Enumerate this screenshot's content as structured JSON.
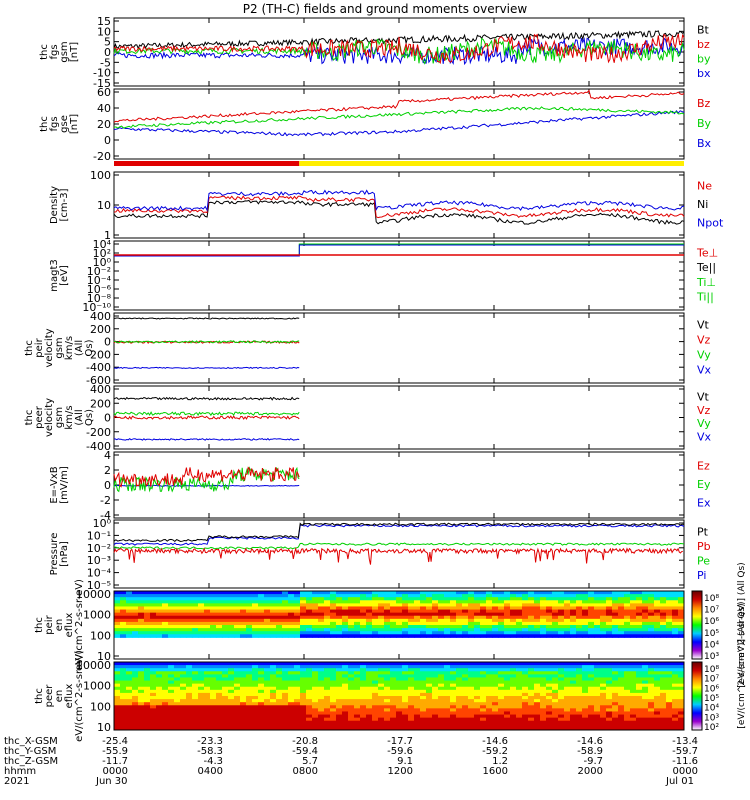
{
  "title": "P2 (TH-C) fields and ground moments overview",
  "colors": {
    "black": "#000000",
    "red": "#e00000",
    "green": "#00d000",
    "blue": "#0000e0",
    "yellow": "#ffee00"
  },
  "time_axis": {
    "tick_hours": [
      0,
      4,
      8,
      12,
      16,
      20,
      24
    ],
    "rows": [
      {
        "label": "thc_X-GSM",
        "values": [
          "-25.4",
          "-23.3",
          "-20.8",
          "-17.7",
          "-14.6",
          "-14.6",
          "-13.4"
        ]
      },
      {
        "label": "thc_Y-GSM",
        "values": [
          "-55.9",
          "-58.3",
          "-59.4",
          "-59.6",
          "-59.2",
          "-58.9",
          "-59.7"
        ]
      },
      {
        "label": "thc_Z-GSM",
        "values": [
          "-11.7",
          "-4.3",
          "5.7",
          "9.1",
          "1.2",
          "-9.7",
          "-11.6"
        ]
      },
      {
        "label": "hhmm",
        "values": [
          "0000",
          "0400",
          "0800",
          "1200",
          "1600",
          "2000",
          "0000"
        ]
      },
      {
        "label": "2021",
        "values": [
          "Jun 30",
          "",
          "",
          "",
          "",
          "",
          "Jul 01"
        ]
      }
    ]
  },
  "chart_data": [
    {
      "type": "line",
      "ylabel": "thc fgs gsm [nT]",
      "yticks": [
        "15",
        "10",
        "5",
        "0",
        "-5",
        "-10",
        "-15"
      ],
      "ylim": [
        -15,
        16
      ],
      "series": [
        {
          "name": "Bt",
          "color": "black"
        },
        {
          "name": "bz",
          "color": "red"
        },
        {
          "name": "by",
          "color": "green"
        },
        {
          "name": "bx",
          "color": "blue"
        }
      ]
    },
    {
      "type": "line",
      "ylabel": "thc fgs gse [nT]",
      "yticks": [
        "60",
        "40",
        "20",
        "0",
        "-20"
      ],
      "ylim": [
        -30,
        62
      ],
      "series": [
        {
          "name": "Bz",
          "color": "red"
        },
        {
          "name": "By",
          "color": "green"
        },
        {
          "name": "Bx",
          "color": "blue"
        }
      ]
    },
    {
      "type": "line",
      "ylabel": "Density [cm-3]",
      "yticks": [
        "100",
        "10",
        "1"
      ],
      "ylim": [
        1,
        200
      ],
      "scale": "log",
      "series": [
        {
          "name": "Ne",
          "color": "red"
        },
        {
          "name": "Ni",
          "color": "black"
        },
        {
          "name": "Npot",
          "color": "blue"
        }
      ]
    },
    {
      "type": "line",
      "ylabel": "magt3 [eV]",
      "yticks": [
        "10⁴",
        "10²",
        "10⁰",
        "10⁻²",
        "10⁻⁴",
        "10⁻⁶",
        "10⁻⁸",
        "10⁻¹⁰"
      ],
      "scale": "log",
      "series": [
        {
          "name": "Te⊥",
          "color": "red"
        },
        {
          "name": "Te||",
          "color": "black"
        },
        {
          "name": "Ti⊥",
          "color": "green"
        },
        {
          "name": "Ti||",
          "color": "green"
        }
      ]
    },
    {
      "type": "line",
      "ylabel": "thc peir velocity gsm km/s (All Qs)",
      "yticks": [
        "400",
        "200",
        "0",
        "-200",
        "-400",
        "-600"
      ],
      "ylim": [
        -600,
        420
      ],
      "series": [
        {
          "name": "Vt",
          "color": "black"
        },
        {
          "name": "Vz",
          "color": "red"
        },
        {
          "name": "Vy",
          "color": "green"
        },
        {
          "name": "Vx",
          "color": "blue"
        }
      ]
    },
    {
      "type": "line",
      "ylabel": "thc peer velocity gsm km/s (All Qs)",
      "yticks": [
        "400",
        "200",
        "0",
        "-200",
        "-400"
      ],
      "ylim": [
        -400,
        420
      ],
      "series": [
        {
          "name": "Vt",
          "color": "black"
        },
        {
          "name": "Vz",
          "color": "red"
        },
        {
          "name": "Vy",
          "color": "green"
        },
        {
          "name": "Vx",
          "color": "blue"
        }
      ]
    },
    {
      "type": "line",
      "ylabel": "E=-VxB [mV/m]",
      "yticks": [
        "4",
        "2",
        "0",
        "-2",
        "-4"
      ],
      "ylim": [
        -4,
        4.2
      ],
      "series": [
        {
          "name": "Ez",
          "color": "red"
        },
        {
          "name": "Ey",
          "color": "green"
        },
        {
          "name": "Ex",
          "color": "blue"
        }
      ]
    },
    {
      "type": "line",
      "ylabel": "Pressure [nPa]",
      "yticks": [
        "10⁰",
        "10⁻¹",
        "10⁻²",
        "10⁻³",
        "10⁻⁴",
        "10⁻⁵"
      ],
      "scale": "log",
      "series": [
        {
          "name": "Pt",
          "color": "black"
        },
        {
          "name": "Pb",
          "color": "red"
        },
        {
          "name": "Pe",
          "color": "green"
        },
        {
          "name": "Pi",
          "color": "blue"
        }
      ]
    },
    {
      "type": "heatmap",
      "ylabel": "thc peir en eflux eV/(cm^2-s-sr-eV)",
      "yticks": [
        "10000",
        "1000",
        "100",
        "10"
      ],
      "scale": "log",
      "colorbar": {
        "ticks": [
          "10⁸",
          "10⁷",
          "10⁶",
          "10⁵",
          "10⁴",
          "10³"
        ],
        "label": "[eV/(cm^2-s-sr-eV)] (All Qs)"
      }
    },
    {
      "type": "heatmap",
      "ylabel": "thc peer en eflux eV/(cm^2-s-sr-eV)",
      "yticks": [
        "10000",
        "1000",
        "100",
        "10"
      ],
      "scale": "log",
      "colorbar": {
        "ticks": [
          "10⁸",
          "10⁷",
          "10⁶",
          "10⁵",
          "10⁴",
          "10³",
          "10²"
        ],
        "label": "[eV/(cm^2-s-sr-eV)] (All Qs)"
      }
    }
  ]
}
